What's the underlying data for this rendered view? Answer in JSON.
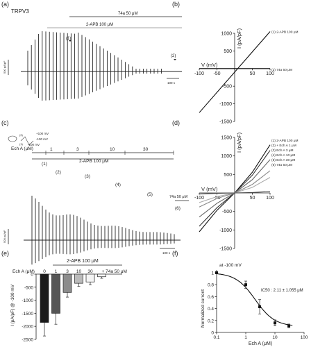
{
  "panels": {
    "a": {
      "label": "(a)",
      "title": "TRPV3",
      "bar_74a": "74a 50 μM",
      "bar_2apb": "2-APB 100 μM",
      "mark1": "(1)",
      "mark2": "(2)",
      "scale_y": "500 pA/pF",
      "scale_x": "100 s"
    },
    "b": {
      "label": "(b)"
    },
    "c": {
      "label": "(c)",
      "proto_top": "+100 mV",
      "proto_mid": "-100 mV",
      "proto_bottom": "-100 mV",
      "proto_marks": [
        "(1)",
        "(2)"
      ],
      "echa_label": "Ech A (μM)",
      "echa_conc": [
        "1",
        "3",
        "10",
        "30"
      ],
      "bar_2apb": "2-APB 100 μM",
      "bar_74a": "74a 50 μM",
      "marks": [
        "(1)",
        "(2)",
        "(3)",
        "(4)",
        "(5)",
        "(6)"
      ],
      "scale_y": "500 pA/pF",
      "scale_x": "100 s"
    },
    "d": {
      "label": "(d)"
    },
    "e": {
      "label": "(e)",
      "bar_2apb": "2-APB 100 μM",
      "echa_label": "Ech A (μM)"
    },
    "f": {
      "label": "(f)",
      "annotation": "at -100 mV",
      "ic50": "IC50 : 2.11 ± 1.055 μM"
    }
  },
  "chart_data": [
    {
      "panel": "b",
      "type": "line",
      "xlabel": "V (mV)",
      "ylabel": "I (pA/pF)",
      "xlim": [
        -100,
        100
      ],
      "ylim": [
        -1500,
        1000
      ],
      "xticks": [
        -100,
        -50,
        0,
        50,
        100
      ],
      "yticks": [
        -1500,
        -1000,
        -500,
        0,
        500,
        1000
      ],
      "series": [
        {
          "name": "(1) 2-APB 100 μM",
          "x": [
            -100,
            100
          ],
          "y": [
            -1250,
            1050
          ]
        },
        {
          "name": "(2) 74a 50 μM",
          "x": [
            -100,
            100
          ],
          "y": [
            0,
            0
          ]
        }
      ]
    },
    {
      "panel": "d",
      "type": "line",
      "xlabel": "V (mV)",
      "ylabel": "I (pA/pF)",
      "xlim": [
        -100,
        100
      ],
      "ylim": [
        -1500,
        1500
      ],
      "xticks": [
        -100,
        -50,
        0,
        50,
        100
      ],
      "yticks": [
        -1500,
        -1000,
        -500,
        0,
        500,
        1000,
        1500
      ],
      "series": [
        {
          "name": "(1) 2-APB 100 μM",
          "x": [
            -100,
            -50,
            0,
            50,
            100
          ],
          "y": [
            -1050,
            -470,
            0,
            560,
            1300
          ]
        },
        {
          "name": "(2) + Ech A 1 μM",
          "x": [
            -100,
            -50,
            0,
            50,
            100
          ],
          "y": [
            -900,
            -400,
            0,
            480,
            1150
          ]
        },
        {
          "name": "(3) Ech A 3 μM",
          "x": [
            -100,
            -50,
            0,
            50,
            100
          ],
          "y": [
            -650,
            -280,
            0,
            360,
            900
          ]
        },
        {
          "name": "(4) Ech A 10 μM",
          "x": [
            -100,
            -50,
            0,
            50,
            100
          ],
          "y": [
            -380,
            -150,
            0,
            230,
            600
          ]
        },
        {
          "name": "(5) Ech A 30 μM",
          "x": [
            -100,
            -50,
            0,
            50,
            100
          ],
          "y": [
            -260,
            -100,
            0,
            150,
            420
          ]
        },
        {
          "name": "(6) 74a 50 μM",
          "x": [
            -100,
            -50,
            0,
            50,
            100
          ],
          "y": [
            -30,
            -10,
            0,
            10,
            40
          ]
        }
      ]
    },
    {
      "panel": "e",
      "type": "bar",
      "ylabel": "I (pA/pF) @ -100 mV",
      "categories": [
        "0",
        "1",
        "3",
        "10",
        "30",
        "+ 74a 50 μM"
      ],
      "values": [
        -1850,
        -1500,
        -700,
        -350,
        -300,
        -100
      ],
      "errors": [
        520,
        420,
        180,
        120,
        110,
        60
      ],
      "ylim": [
        -2500,
        0
      ],
      "yticks": [
        0,
        -500,
        -1000,
        -1500,
        -2000,
        -2500
      ],
      "colors": [
        "#1a1a1a",
        "#555555",
        "#8c8c8c",
        "#bbbbbb",
        "#f4f4f4",
        "#ffffff"
      ]
    },
    {
      "panel": "f",
      "type": "line",
      "xlabel": "Ech A (μM)",
      "ylabel": "Normalized current",
      "xscale": "log",
      "xlim": [
        0.1,
        100
      ],
      "ylim": [
        0,
        1.0
      ],
      "xticks": [
        0.1,
        1,
        10,
        100
      ],
      "yticks": [
        0,
        0.2,
        0.4,
        0.6,
        0.8,
        1.0
      ],
      "points": {
        "x": [
          0.1,
          1,
          3,
          10,
          30
        ],
        "y": [
          1.0,
          0.8,
          0.43,
          0.16,
          0.11
        ],
        "err": [
          0,
          0.06,
          0.12,
          0.05,
          0.03
        ]
      },
      "fit_ic50": 2.11
    }
  ]
}
